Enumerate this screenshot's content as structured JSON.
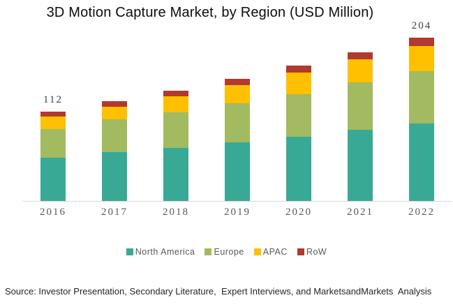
{
  "title": "3D Motion Capture Market, by Region (USD Million)",
  "source_line": "Source: Investor Presentation, Secondary Literature,  Expert Interviews, and MarketsandMarkets  Analysis",
  "chart_data": {
    "type": "bar",
    "stacked": true,
    "title": "3D Motion Capture Market, by Region (USD Million)",
    "xlabel": "",
    "ylabel": "USD Million",
    "grid": false,
    "y_axis_visible": false,
    "legend_position": "bottom",
    "axis_line_color": "#d9d9d9",
    "categories": [
      "2016",
      "2017",
      "2018",
      "2019",
      "2020",
      "2021",
      "2022"
    ],
    "series": [
      {
        "name": "North America",
        "color": "#38A995",
        "values": [
          54,
          61,
          66,
          73,
          80,
          89,
          97
        ]
      },
      {
        "name": "Europe",
        "color": "#A2BA60",
        "values": [
          36,
          41,
          45,
          49,
          54,
          59,
          65
        ]
      },
      {
        "name": "APAC",
        "color": "#FFC000",
        "values": [
          16,
          16,
          20,
          23,
          27,
          29,
          32
        ]
      },
      {
        "name": "RoW",
        "color": "#B2392F",
        "values": [
          6,
          7,
          7,
          8,
          8,
          9,
          10
        ]
      }
    ],
    "totals": [
      112,
      125,
      138,
      153,
      169,
      186,
      204
    ],
    "data_labels": [
      "112",
      "",
      "",
      "",
      "",
      "",
      "204"
    ]
  }
}
